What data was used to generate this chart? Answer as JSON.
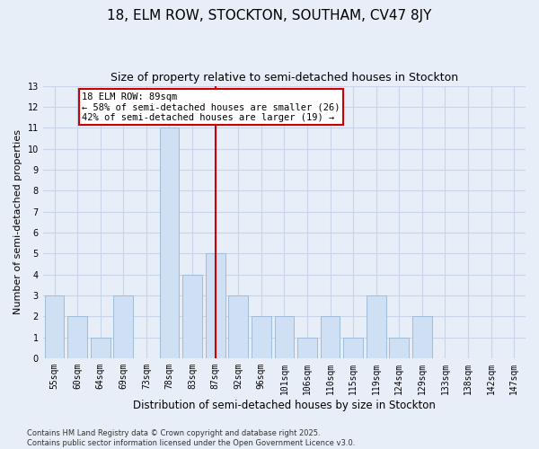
{
  "title1": "18, ELM ROW, STOCKTON, SOUTHAM, CV47 8JY",
  "title2": "Size of property relative to semi-detached houses in Stockton",
  "xlabel": "Distribution of semi-detached houses by size in Stockton",
  "ylabel": "Number of semi-detached properties",
  "categories": [
    "55sqm",
    "60sqm",
    "64sqm",
    "69sqm",
    "73sqm",
    "78sqm",
    "83sqm",
    "87sqm",
    "92sqm",
    "96sqm",
    "101sqm",
    "106sqm",
    "110sqm",
    "115sqm",
    "119sqm",
    "124sqm",
    "129sqm",
    "133sqm",
    "138sqm",
    "142sqm",
    "147sqm"
  ],
  "bar_values": [
    3,
    2,
    1,
    3,
    0,
    11,
    4,
    5,
    3,
    2,
    2,
    1,
    2,
    1,
    3,
    1,
    2,
    0,
    0,
    0,
    0
  ],
  "bar_color": "#cfe0f5",
  "bar_edge_color": "#a0bcd8",
  "vline_color": "#cc0000",
  "vline_x": 7.5,
  "annotation_text": "18 ELM ROW: 89sqm\n← 58% of semi-detached houses are smaller (26)\n42% of semi-detached houses are larger (19) →",
  "annotation_box_facecolor": "#ffffff",
  "annotation_box_edgecolor": "#cc0000",
  "ylim": [
    0,
    13
  ],
  "yticks": [
    0,
    1,
    2,
    3,
    4,
    5,
    6,
    7,
    8,
    9,
    10,
    11,
    12,
    13
  ],
  "grid_color": "#c8d4e8",
  "background_color": "#e8eef8",
  "footer": "Contains HM Land Registry data © Crown copyright and database right 2025.\nContains public sector information licensed under the Open Government Licence v3.0.",
  "title1_fontsize": 11,
  "title2_fontsize": 9,
  "xlabel_fontsize": 8.5,
  "ylabel_fontsize": 8,
  "tick_fontsize": 7,
  "annotation_fontsize": 7.5,
  "footer_fontsize": 6
}
